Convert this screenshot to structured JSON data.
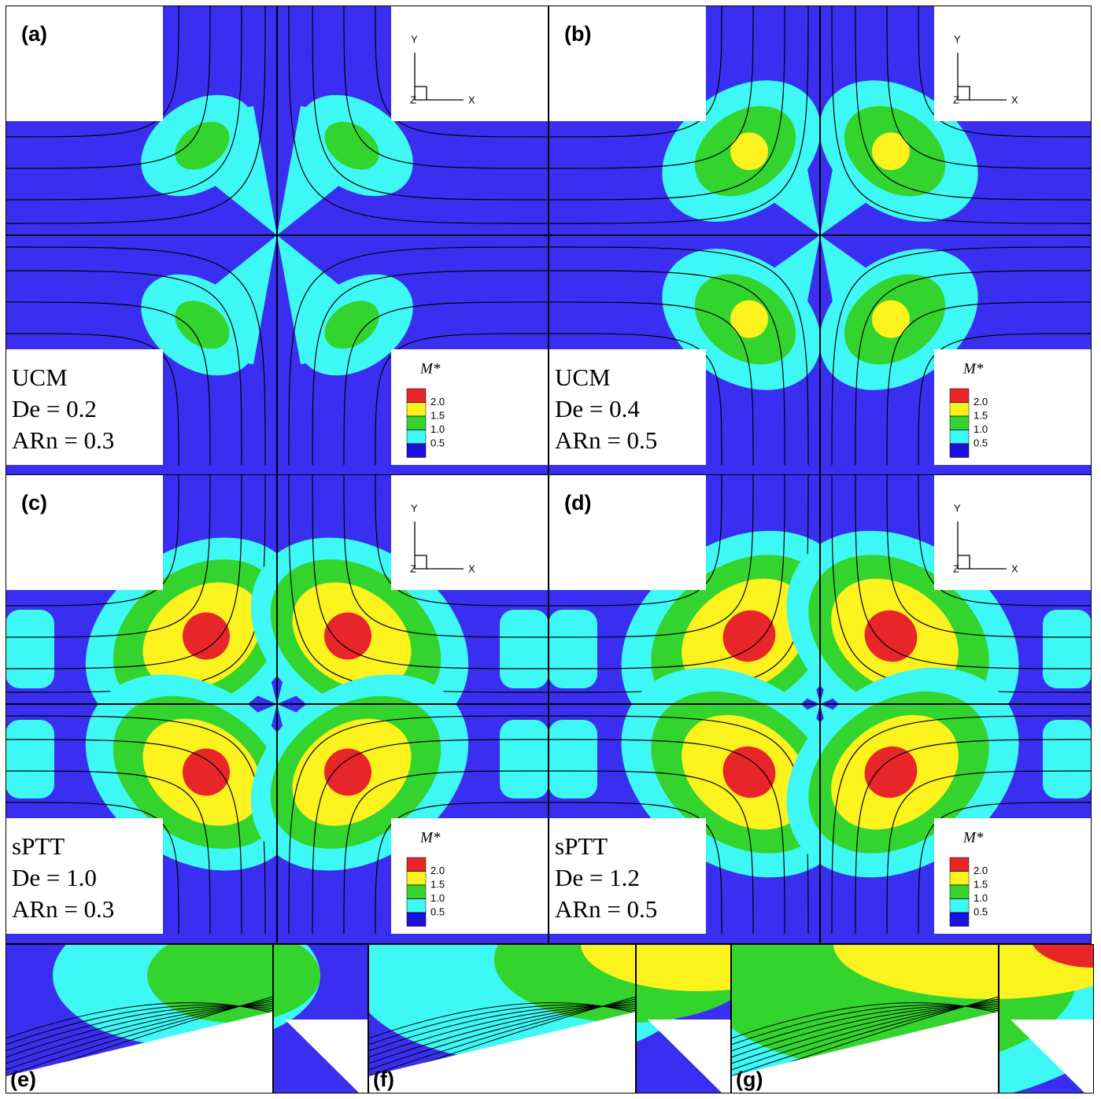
{
  "panels": [
    {
      "label": "(a)",
      "text": [
        "UCM",
        "De = 0.2",
        "ARn = 0.3"
      ],
      "axes": [
        "Y",
        "X",
        "Z"
      ]
    },
    {
      "label": "(b)",
      "text": [
        "UCM",
        "De = 0.4",
        "ARn = 0.5"
      ],
      "axes": [
        "Y",
        "X",
        "Z"
      ]
    },
    {
      "label": "(c)",
      "text": [
        "sPTT",
        "De = 1.0",
        "ARn = 0.3"
      ],
      "axes": [
        "Y",
        "X",
        "Z"
      ]
    },
    {
      "label": "(d)",
      "text": [
        "sPTT",
        "De = 1.2",
        "ARn = 0.5"
      ],
      "axes": [
        "Y",
        "X",
        "Z"
      ]
    }
  ],
  "legend": {
    "title": "M*",
    "colors": [
      "#e8262a",
      "#fbf21e",
      "#33d42e",
      "#3ef8f5",
      "#1d0fe0"
    ],
    "ticks": [
      {
        "value": 2,
        "label": "2.0"
      },
      {
        "value": 1.5,
        "label": "1.5"
      },
      {
        "value": 1,
        "label": "1.0"
      },
      {
        "value": 0.5,
        "label": "0.5"
      }
    ]
  },
  "insets": [
    {
      "label": "(e)"
    },
    {
      "label": "(f)"
    },
    {
      "label": "(g)"
    }
  ]
}
